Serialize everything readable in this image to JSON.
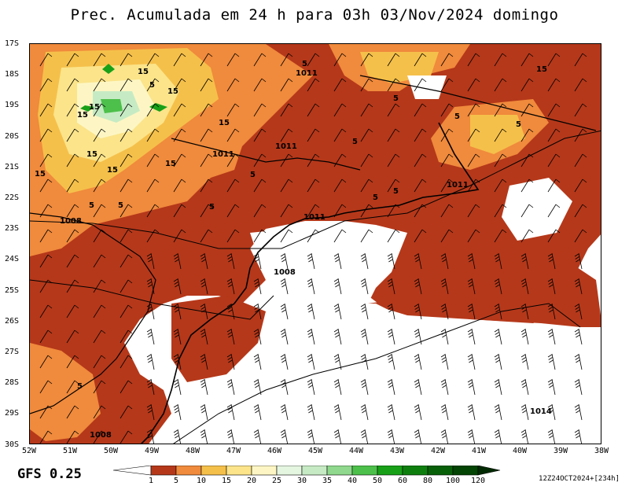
{
  "title": "Prec. Acumulada em 24 h para 03h 03/Nov/2024 domingo",
  "model": "GFS 0.25",
  "run_info": "12Z24OCT2024+[234h]",
  "latitudes": [
    "17S",
    "18S",
    "19S",
    "20S",
    "21S",
    "22S",
    "23S",
    "24S",
    "25S",
    "26S",
    "27S",
    "28S",
    "29S",
    "30S"
  ],
  "longitudes": [
    "52W",
    "51W",
    "50W",
    "49W",
    "48W",
    "47W",
    "46W",
    "45W",
    "44W",
    "43W",
    "42W",
    "41W",
    "40W",
    "39W",
    "38W"
  ],
  "legend": {
    "levels": [
      "1",
      "5",
      "10",
      "15",
      "20",
      "25",
      "30",
      "35",
      "40",
      "50",
      "60",
      "80",
      "100",
      "120"
    ],
    "colors": [
      "#ffffff",
      "#b5381a",
      "#f08a3c",
      "#f5c04a",
      "#fbe48a",
      "#fdf6c4",
      "#e4f5e0",
      "#c6ebc4",
      "#8fd88d",
      "#4cc04a",
      "#18a118",
      "#0e7f0e",
      "#086008",
      "#044404",
      "#022a02"
    ]
  },
  "map_labels": {
    "isobars": [
      "1011",
      "1011",
      "1011",
      "1011",
      "1011",
      "1008",
      "1008",
      "1008",
      "1014"
    ],
    "contours": [
      "15",
      "15",
      "15",
      "15",
      "15",
      "15",
      "15",
      "15",
      "15",
      "5",
      "5",
      "5",
      "5",
      "5",
      "5",
      "5",
      "5",
      "5",
      "5",
      "5",
      "5",
      "5"
    ]
  }
}
